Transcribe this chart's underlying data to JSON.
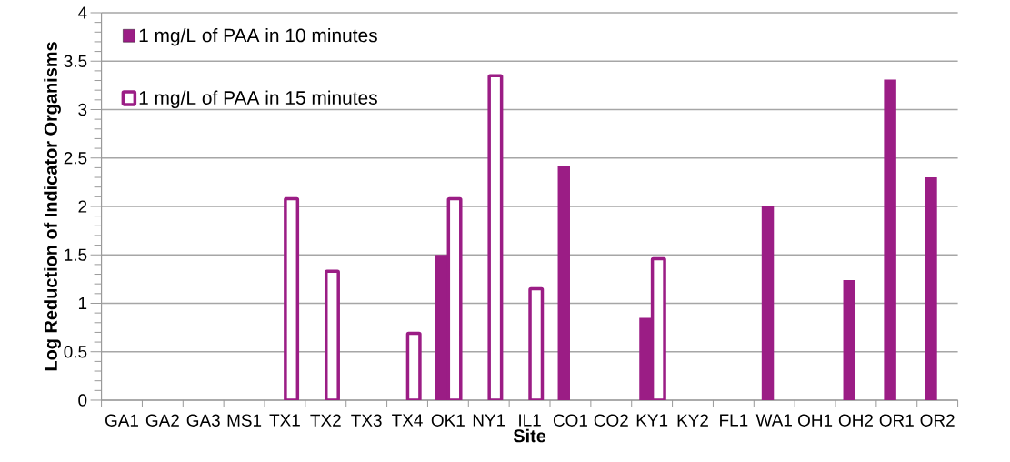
{
  "chart_data": {
    "type": "bar",
    "xlabel": "Site",
    "ylabel": "Log Reduction of Indicator Organisms",
    "categories": [
      "GA1",
      "GA2",
      "GA3",
      "MS1",
      "TX1",
      "TX2",
      "TX3",
      "TX4",
      "OK1",
      "NY1",
      "IL1",
      "CO1",
      "CO2",
      "KY1",
      "KY2",
      "FL1",
      "WA1",
      "OH1",
      "OH2",
      "OR1",
      "OR2"
    ],
    "series": [
      {
        "name": "1 mg/L of PAA in 10 minutes",
        "color": "#9b1d85",
        "values": [
          null,
          null,
          null,
          null,
          null,
          null,
          null,
          null,
          1.5,
          null,
          null,
          2.42,
          null,
          0.85,
          null,
          null,
          2.0,
          null,
          1.24,
          3.31,
          2.3
        ]
      },
      {
        "name": "1 mg/L of PAA in 15 minutes",
        "color": "#9b1d85",
        "values": [
          null,
          null,
          null,
          null,
          2.08,
          1.33,
          null,
          0.69,
          2.08,
          3.35,
          1.15,
          null,
          null,
          1.46,
          null,
          null,
          null,
          null,
          null,
          null,
          null
        ]
      }
    ],
    "ylim": [
      0,
      4
    ],
    "yticks": [
      0,
      0.5,
      1,
      1.5,
      2,
      2.5,
      3,
      3.5,
      4
    ],
    "grid": "y",
    "legend": "top left"
  }
}
